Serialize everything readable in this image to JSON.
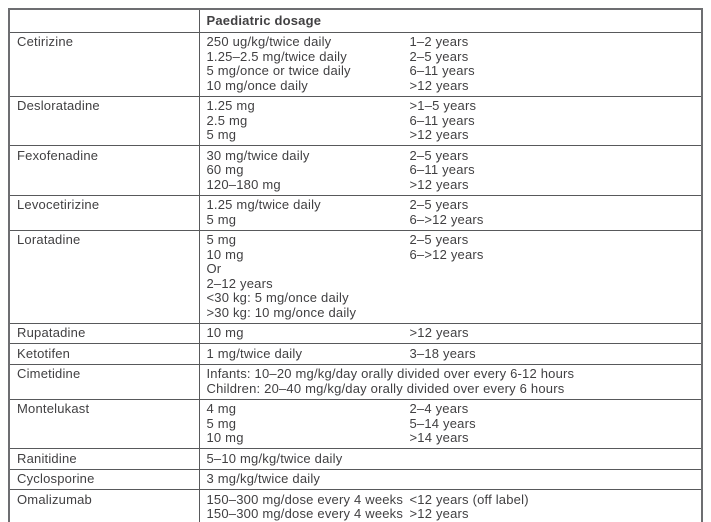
{
  "colors": {
    "border_outer": "#6d6e71",
    "border_inner": "#58595b",
    "text": "#414042",
    "background": "#ffffff"
  },
  "table": {
    "header": {
      "drug_col": "",
      "dosage_col": "Paediatric dosage"
    },
    "rows": [
      {
        "drug": "Cetirizine",
        "type": "pairs",
        "entries": [
          {
            "dose": "250 ug/kg/twice daily",
            "age": "1–2 years"
          },
          {
            "dose": "1.25–2.5 mg/twice daily",
            "age": "2–5 years"
          },
          {
            "dose": "5 mg/once or twice daily",
            "age": "6–11 years"
          },
          {
            "dose": "10 mg/once daily",
            "age": ">12 years"
          }
        ]
      },
      {
        "drug": "Desloratadine",
        "type": "pairs",
        "entries": [
          {
            "dose": "1.25 mg",
            "age": ">1–5 years"
          },
          {
            "dose": "2.5 mg",
            "age": "6–11 years"
          },
          {
            "dose": "5 mg",
            "age": ">12 years"
          }
        ]
      },
      {
        "drug": "Fexofenadine",
        "type": "pairs",
        "entries": [
          {
            "dose": "30 mg/twice daily",
            "age": "2–5 years"
          },
          {
            "dose": "60 mg",
            "age": "6–11 years"
          },
          {
            "dose": "120–180 mg",
            "age": ">12 years"
          }
        ]
      },
      {
        "drug": "Levocetirizine",
        "type": "pairs",
        "entries": [
          {
            "dose": "1.25 mg/twice daily",
            "age": "2–5 years"
          },
          {
            "dose": "5 mg",
            "age": "6–>12 years"
          }
        ]
      },
      {
        "drug": "Loratadine",
        "type": "pairs",
        "entries": [
          {
            "dose": "5 mg",
            "age": "2–5 years"
          },
          {
            "dose": "10 mg",
            "age": "6–>12 years"
          },
          {
            "dose": "Or",
            "age": ""
          },
          {
            "dose": "2–12 years",
            "age": ""
          },
          {
            "dose": "<30 kg: 5 mg/once daily",
            "age": ""
          },
          {
            "dose": ">30 kg: 10 mg/once daily",
            "age": ""
          }
        ]
      },
      {
        "drug": "Rupatadine",
        "type": "pairs",
        "entries": [
          {
            "dose": "10 mg",
            "age": ">12 years"
          }
        ]
      },
      {
        "drug": "Ketotifen",
        "type": "pairs",
        "entries": [
          {
            "dose": "1 mg/twice daily",
            "age": "3–18 years"
          }
        ]
      },
      {
        "drug": "Cimetidine",
        "type": "span",
        "lines": [
          "Infants: 10–20 mg/kg/day orally divided over every 6-12 hours",
          "Children: 20–40 mg/kg/day orally divided over every 6 hours"
        ]
      },
      {
        "drug": "Montelukast",
        "type": "pairs",
        "entries": [
          {
            "dose": "4 mg",
            "age": "2–4 years"
          },
          {
            "dose": "5 mg",
            "age": "5–14 years"
          },
          {
            "dose": "10 mg",
            "age": ">14 years"
          }
        ]
      },
      {
        "drug": "Ranitidine",
        "type": "span",
        "lines": [
          "5–10 mg/kg/twice daily"
        ]
      },
      {
        "drug": "Cyclosporine",
        "type": "span",
        "lines": [
          "3 mg/kg/twice daily"
        ]
      },
      {
        "drug": "Omalizumab",
        "type": "pairs",
        "entries": [
          {
            "dose": "150–300 mg/dose every 4 weeks",
            "age": "<12 years (off label)"
          },
          {
            "dose": "150–300 mg/dose every 4 weeks",
            "age": ">12 years"
          }
        ]
      }
    ]
  }
}
